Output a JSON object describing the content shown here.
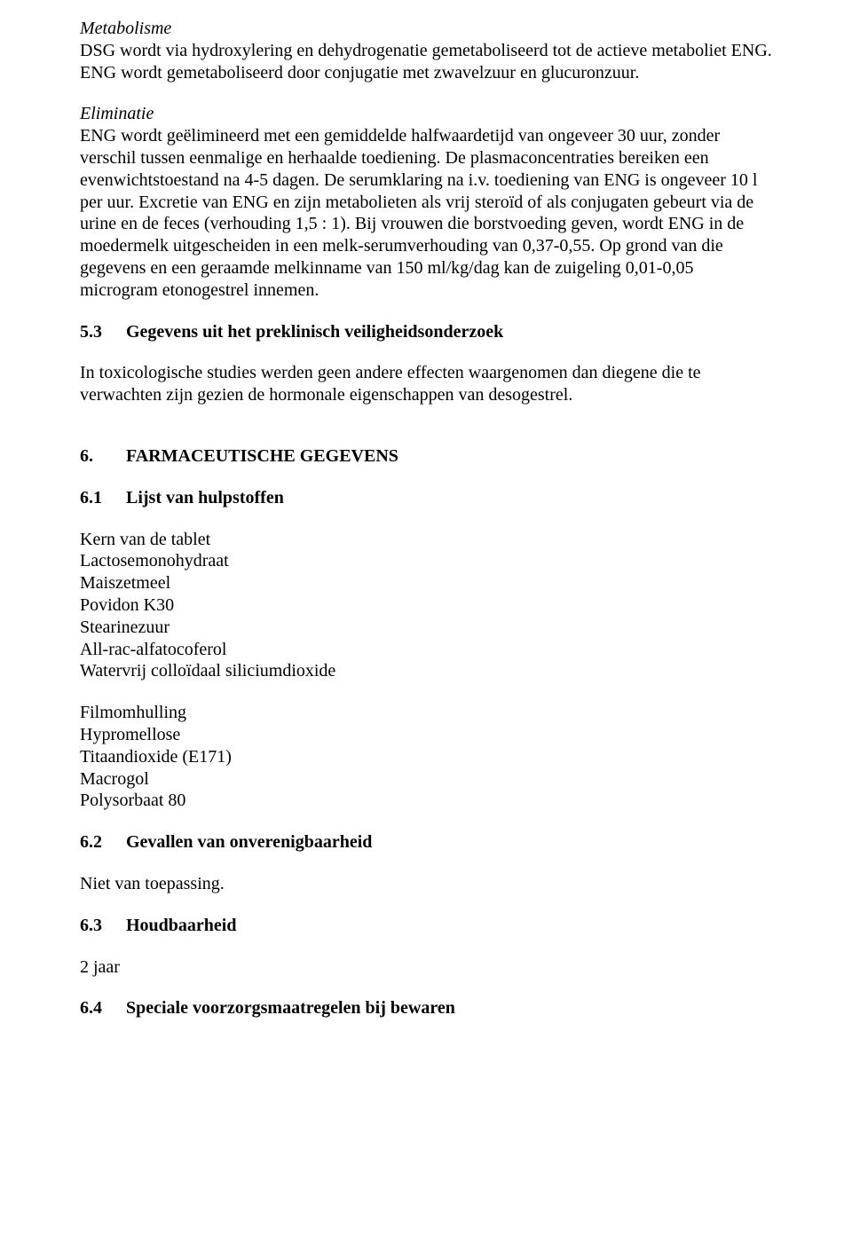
{
  "metabolism": {
    "heading": "Metabolisme",
    "body": "DSG wordt via hydroxylering en dehydrogenatie gemetaboliseerd tot de actieve metaboliet ENG. ENG wordt gemetaboliseerd door conjugatie met zwavelzuur en glucuronzuur."
  },
  "elimination": {
    "heading": "Eliminatie",
    "body": "ENG wordt geëlimineerd met een gemiddelde halfwaardetijd van ongeveer 30 uur, zonder verschil tussen eenmalige en herhaalde toediening. De plasmaconcentraties bereiken een evenwichtstoestand na 4-5 dagen. De serumklaring na i.v. toediening van ENG is ongeveer 10 l per uur. Excretie van ENG en zijn metabolieten als vrij steroïd of als conjugaten gebeurt via de urine en de feces (verhouding 1,5 : 1). Bij vrouwen die borstvoeding geven, wordt ENG in de moedermelk uitgescheiden in een melk-serumverhouding van 0,37-0,55. Op grond van die gegevens en een geraamde melkinname van 150 ml/kg/dag kan de zuigeling 0,01-0,05 microgram etonogestrel innemen."
  },
  "sec53": {
    "num": "5.3",
    "title": "Gegevens uit het preklinisch veiligheidsonderzoek",
    "body": "In toxicologische studies werden geen andere effecten waargenomen dan diegene die te verwachten zijn gezien de hormonale eigenschappen van desogestrel."
  },
  "sec6": {
    "num": "6.",
    "title": "FARMACEUTISCHE GEGEVENS"
  },
  "sec61": {
    "num": "6.1",
    "title": "Lijst van hulpstoffen",
    "core_heading": "Kern van de tablet",
    "core_items": [
      "Lactosemonohydraat",
      "Maiszetmeel",
      "Povidon K30",
      "Stearinezuur",
      "All-rac-alfatocoferol",
      "Watervrij colloïdaal siliciumdioxide"
    ],
    "coat_heading": "Filmomhulling",
    "coat_items": [
      "Hypromellose",
      "Titaandioxide (E171)",
      "Macrogol",
      "Polysorbaat 80"
    ]
  },
  "sec62": {
    "num": "6.2",
    "title": "Gevallen van onverenigbaarheid",
    "body": "Niet van toepassing."
  },
  "sec63": {
    "num": "6.3",
    "title": "Houdbaarheid",
    "body": "2 jaar"
  },
  "sec64": {
    "num": "6.4",
    "title": "Speciale voorzorgsmaatregelen bij bewaren"
  }
}
